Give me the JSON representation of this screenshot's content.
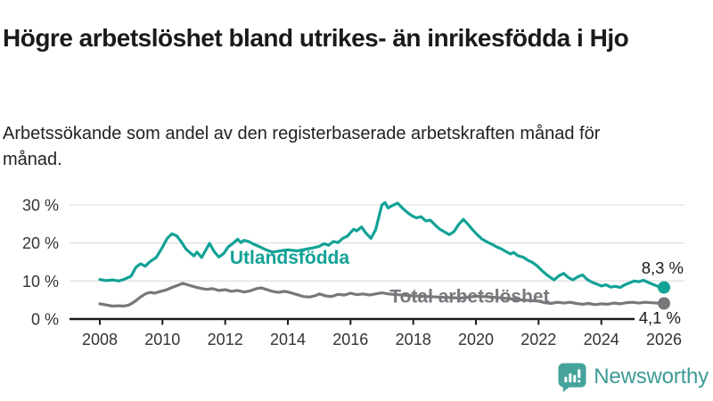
{
  "header": {
    "title": "Högre arbetslöshet bland utrikes- än inrikesfödda i Hjo",
    "subtitle": "Arbetssökande som andel av den registerbaserade arbetskraften månad för månad."
  },
  "chart_data": {
    "type": "line",
    "title": "Arbetssökande som andel av den registerbaserade arbetskraften månad för månad",
    "xlabel": "",
    "ylabel": "",
    "grid": "horizontal-only",
    "legend_position": "inline-line-labels",
    "x_range": [
      2008,
      2026
    ],
    "ylim": [
      0,
      32
    ],
    "y_tick_values": [
      0,
      10,
      20,
      30
    ],
    "y_ticks": [
      "0 %",
      "10 %",
      "20 %",
      "30 %"
    ],
    "x_ticks": [
      "2008",
      "2010",
      "2012",
      "2014",
      "2016",
      "2018",
      "2020",
      "2022",
      "2024",
      "2026"
    ],
    "series": [
      {
        "name": "Utlandsfödda",
        "color": "#12a296",
        "end_value": 8.3,
        "end_label": "8,3 %",
        "end_label_position": "above",
        "label_anchor": {
          "year": 2012.15,
          "value": 14.5
        },
        "points": [
          [
            2008.0,
            10.4
          ],
          [
            2008.2,
            10.1
          ],
          [
            2008.4,
            10.3
          ],
          [
            2008.6,
            10.0
          ],
          [
            2008.8,
            10.5
          ],
          [
            2009.0,
            11.3
          ],
          [
            2009.15,
            13.6
          ],
          [
            2009.3,
            14.5
          ],
          [
            2009.45,
            13.9
          ],
          [
            2009.6,
            15.1
          ],
          [
            2009.8,
            16.2
          ],
          [
            2010.0,
            18.9
          ],
          [
            2010.15,
            21.2
          ],
          [
            2010.3,
            22.4
          ],
          [
            2010.45,
            21.9
          ],
          [
            2010.6,
            20.3
          ],
          [
            2010.75,
            18.4
          ],
          [
            2010.9,
            17.3
          ],
          [
            2011.0,
            16.6
          ],
          [
            2011.1,
            17.6
          ],
          [
            2011.25,
            16.2
          ],
          [
            2011.4,
            18.4
          ],
          [
            2011.5,
            19.9
          ],
          [
            2011.65,
            17.7
          ],
          [
            2011.8,
            16.3
          ],
          [
            2011.95,
            17.2
          ],
          [
            2012.1,
            19.0
          ],
          [
            2012.25,
            19.9
          ],
          [
            2012.4,
            21.0
          ],
          [
            2012.5,
            20.1
          ],
          [
            2012.6,
            20.7
          ],
          [
            2012.75,
            20.4
          ],
          [
            2012.9,
            19.7
          ],
          [
            2013.1,
            19.0
          ],
          [
            2013.3,
            18.2
          ],
          [
            2013.5,
            17.6
          ],
          [
            2013.75,
            17.9
          ],
          [
            2014.0,
            18.2
          ],
          [
            2014.3,
            17.9
          ],
          [
            2014.6,
            18.4
          ],
          [
            2014.8,
            18.7
          ],
          [
            2015.0,
            19.1
          ],
          [
            2015.15,
            19.8
          ],
          [
            2015.3,
            19.4
          ],
          [
            2015.45,
            20.4
          ],
          [
            2015.6,
            20.1
          ],
          [
            2015.75,
            21.2
          ],
          [
            2015.9,
            21.8
          ],
          [
            2016.0,
            22.7
          ],
          [
            2016.1,
            23.6
          ],
          [
            2016.2,
            23.2
          ],
          [
            2016.35,
            24.2
          ],
          [
            2016.5,
            22.5
          ],
          [
            2016.65,
            21.2
          ],
          [
            2016.8,
            23.5
          ],
          [
            2016.9,
            26.8
          ],
          [
            2017.0,
            30.0
          ],
          [
            2017.1,
            30.6
          ],
          [
            2017.2,
            29.2
          ],
          [
            2017.35,
            29.9
          ],
          [
            2017.5,
            30.5
          ],
          [
            2017.65,
            29.2
          ],
          [
            2017.8,
            28.1
          ],
          [
            2017.95,
            27.2
          ],
          [
            2018.1,
            26.6
          ],
          [
            2018.25,
            26.9
          ],
          [
            2018.4,
            25.8
          ],
          [
            2018.55,
            26.0
          ],
          [
            2018.7,
            24.7
          ],
          [
            2018.85,
            23.6
          ],
          [
            2019.0,
            22.9
          ],
          [
            2019.15,
            22.2
          ],
          [
            2019.3,
            23.0
          ],
          [
            2019.45,
            24.9
          ],
          [
            2019.6,
            26.2
          ],
          [
            2019.75,
            24.9
          ],
          [
            2019.9,
            23.4
          ],
          [
            2020.05,
            22.1
          ],
          [
            2020.2,
            21.0
          ],
          [
            2020.35,
            20.3
          ],
          [
            2020.5,
            19.7
          ],
          [
            2020.65,
            19.0
          ],
          [
            2020.8,
            18.5
          ],
          [
            2020.95,
            17.8
          ],
          [
            2021.1,
            17.1
          ],
          [
            2021.2,
            17.5
          ],
          [
            2021.35,
            16.6
          ],
          [
            2021.5,
            16.3
          ],
          [
            2021.65,
            15.5
          ],
          [
            2021.8,
            14.9
          ],
          [
            2021.95,
            14.0
          ],
          [
            2022.1,
            12.8
          ],
          [
            2022.25,
            11.7
          ],
          [
            2022.4,
            10.8
          ],
          [
            2022.5,
            10.3
          ],
          [
            2022.65,
            11.4
          ],
          [
            2022.8,
            12.0
          ],
          [
            2022.95,
            10.9
          ],
          [
            2023.1,
            10.3
          ],
          [
            2023.25,
            11.1
          ],
          [
            2023.4,
            11.6
          ],
          [
            2023.55,
            10.4
          ],
          [
            2023.7,
            9.7
          ],
          [
            2023.85,
            9.2
          ],
          [
            2024.0,
            8.7
          ],
          [
            2024.15,
            9.0
          ],
          [
            2024.3,
            8.4
          ],
          [
            2024.45,
            8.6
          ],
          [
            2024.6,
            8.3
          ],
          [
            2024.75,
            9.0
          ],
          [
            2024.9,
            9.5
          ],
          [
            2025.05,
            10.0
          ],
          [
            2025.2,
            9.8
          ],
          [
            2025.35,
            10.2
          ],
          [
            2025.5,
            9.6
          ],
          [
            2025.65,
            9.1
          ],
          [
            2025.8,
            8.6
          ],
          [
            2026.0,
            8.3
          ]
        ]
      },
      {
        "name": "Total arbetslöshet",
        "color": "#77787c",
        "end_value": 4.1,
        "end_label": "4,1 %",
        "end_label_position": "below-halo",
        "label_anchor": {
          "year": 2017.25,
          "value": 4.3
        },
        "points": [
          [
            2008.0,
            4.0
          ],
          [
            2008.2,
            3.7
          ],
          [
            2008.4,
            3.4
          ],
          [
            2008.6,
            3.5
          ],
          [
            2008.75,
            3.4
          ],
          [
            2008.9,
            3.6
          ],
          [
            2009.0,
            4.0
          ],
          [
            2009.15,
            4.8
          ],
          [
            2009.3,
            5.8
          ],
          [
            2009.45,
            6.6
          ],
          [
            2009.6,
            7.0
          ],
          [
            2009.75,
            6.8
          ],
          [
            2009.9,
            7.2
          ],
          [
            2010.1,
            7.6
          ],
          [
            2010.3,
            8.3
          ],
          [
            2010.5,
            8.9
          ],
          [
            2010.65,
            9.4
          ],
          [
            2010.8,
            9.0
          ],
          [
            2011.0,
            8.5
          ],
          [
            2011.2,
            8.1
          ],
          [
            2011.4,
            7.8
          ],
          [
            2011.6,
            8.0
          ],
          [
            2011.8,
            7.5
          ],
          [
            2012.0,
            7.7
          ],
          [
            2012.2,
            7.3
          ],
          [
            2012.4,
            7.5
          ],
          [
            2012.6,
            7.1
          ],
          [
            2012.8,
            7.4
          ],
          [
            2013.0,
            8.0
          ],
          [
            2013.15,
            8.2
          ],
          [
            2013.3,
            7.8
          ],
          [
            2013.5,
            7.3
          ],
          [
            2013.7,
            7.0
          ],
          [
            2013.9,
            7.3
          ],
          [
            2014.1,
            6.9
          ],
          [
            2014.3,
            6.4
          ],
          [
            2014.5,
            5.9
          ],
          [
            2014.7,
            5.8
          ],
          [
            2014.9,
            6.2
          ],
          [
            2015.0,
            6.6
          ],
          [
            2015.2,
            6.1
          ],
          [
            2015.4,
            5.9
          ],
          [
            2015.6,
            6.5
          ],
          [
            2015.8,
            6.3
          ],
          [
            2016.0,
            6.8
          ],
          [
            2016.2,
            6.4
          ],
          [
            2016.4,
            6.6
          ],
          [
            2016.6,
            6.3
          ],
          [
            2016.8,
            6.6
          ],
          [
            2017.0,
            6.9
          ],
          [
            2017.2,
            6.6
          ],
          [
            2017.5,
            6.4
          ],
          [
            2018.0,
            6.1
          ],
          [
            2018.5,
            5.9
          ],
          [
            2019.0,
            5.7
          ],
          [
            2019.5,
            5.5
          ],
          [
            2020.0,
            6.0
          ],
          [
            2020.5,
            5.8
          ],
          [
            2021.0,
            5.4
          ],
          [
            2021.5,
            5.0
          ],
          [
            2022.0,
            4.7
          ],
          [
            2022.2,
            4.3
          ],
          [
            2022.4,
            4.1
          ],
          [
            2022.6,
            4.4
          ],
          [
            2022.8,
            4.2
          ],
          [
            2023.0,
            4.4
          ],
          [
            2023.2,
            4.1
          ],
          [
            2023.4,
            3.9
          ],
          [
            2023.6,
            4.1
          ],
          [
            2023.8,
            3.8
          ],
          [
            2024.0,
            4.0
          ],
          [
            2024.2,
            3.9
          ],
          [
            2024.4,
            4.2
          ],
          [
            2024.6,
            4.0
          ],
          [
            2024.8,
            4.3
          ],
          [
            2025.0,
            4.4
          ],
          [
            2025.2,
            4.2
          ],
          [
            2025.4,
            4.4
          ],
          [
            2025.6,
            4.3
          ],
          [
            2025.8,
            4.2
          ],
          [
            2026.0,
            4.1
          ]
        ]
      }
    ]
  },
  "logo": {
    "text": "Newsworthy",
    "icon": "bar-chart-speech-bubble-icon",
    "icon_color": "#45a39c",
    "text_color": "#3d9b95"
  },
  "colors": {
    "accent_teal": "#12a296",
    "line_gray": "#77787c",
    "axis": "#1a1a1a",
    "gridline": "#e1e1e1",
    "tick_label": "#333333"
  }
}
